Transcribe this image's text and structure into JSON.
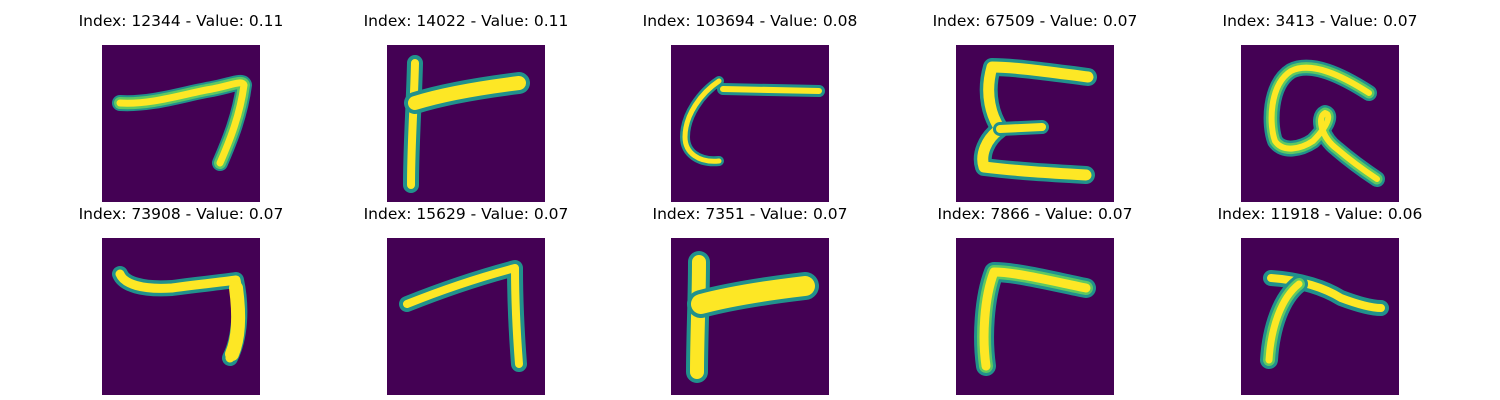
{
  "colors": {
    "background": "#440154",
    "stroke_core": "#fde725",
    "stroke_edge": "#21918c",
    "stroke_mid": "#5ec962"
  },
  "panels": [
    {
      "title": "Index: 12344 - Value: 0.11",
      "glyph": "seven-like"
    },
    {
      "title": "Index: 14022 - Value: 0.11",
      "glyph": "gamma-like"
    },
    {
      "title": "Index: 103694 - Value: 0.08",
      "glyph": "c-with-bar"
    },
    {
      "title": "Index: 67509 - Value: 0.07",
      "glyph": "e-like"
    },
    {
      "title": "Index: 3413 - Value: 0.07",
      "glyph": "g-like"
    },
    {
      "title": "Index: 73908 - Value: 0.07",
      "glyph": "seven-like"
    },
    {
      "title": "Index: 15629 - Value: 0.07",
      "glyph": "seven-like"
    },
    {
      "title": "Index: 7351 - Value: 0.07",
      "glyph": "gamma-like"
    },
    {
      "title": "Index: 7866 - Value: 0.07",
      "glyph": "gamma-like"
    },
    {
      "title": "Index: 11918 - Value: 0.06",
      "glyph": "gamma-like"
    }
  ]
}
